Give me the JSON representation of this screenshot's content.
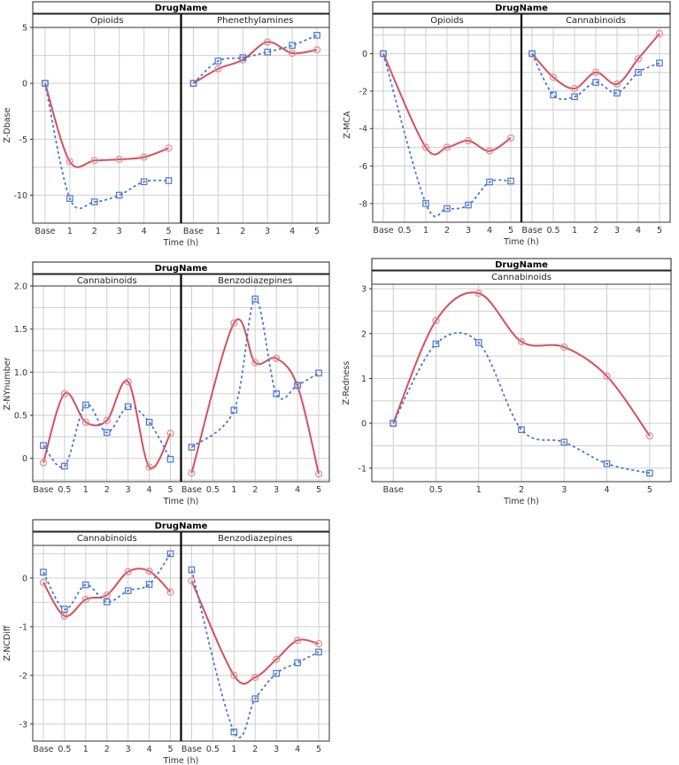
{
  "colors": {
    "series_red": "#d6505f",
    "series_blue": "#4a78d0",
    "grid": "#cfcfcf"
  },
  "chart_data": [
    {
      "type": "line",
      "header": "DrugName",
      "ylabel": "Z-Dbase",
      "xlabel": "Time (h)",
      "categories": [
        "Base",
        "1",
        "2",
        "3",
        "4",
        "5"
      ],
      "ylim": [
        -12.5,
        5.0
      ],
      "yticks": [
        5,
        0,
        -5,
        -10
      ],
      "ytick_labels": [
        "5",
        "0",
        "-5",
        "-10"
      ],
      "yminor": 2.5,
      "panels": [
        {
          "name": "Opioids",
          "series": [
            {
              "name": "red-solid",
              "values": [
                0,
                -7.0,
                -6.9,
                -6.8,
                -6.6,
                -5.8
              ]
            },
            {
              "name": "blue-dashed",
              "values": [
                0,
                -10.3,
                -10.6,
                -10.0,
                -8.8,
                -8.7
              ]
            }
          ]
        },
        {
          "name": "Phenethylamines",
          "series": [
            {
              "name": "red-solid",
              "values": [
                0,
                1.3,
                2.1,
                3.7,
                2.7,
                3.0
              ]
            },
            {
              "name": "blue-dashed",
              "values": [
                0,
                2.0,
                2.3,
                2.8,
                3.4,
                4.3
              ]
            }
          ]
        }
      ]
    },
    {
      "type": "line",
      "header": "DrugName",
      "ylabel": "Z-MCA",
      "xlabel": "Time (h)",
      "categories": [
        "Base",
        "0.5",
        "1",
        "2",
        "3",
        "4",
        "5"
      ],
      "ylim": [
        -9.0,
        1.4
      ],
      "yticks": [
        0,
        -2,
        -4,
        -6,
        -8
      ],
      "ytick_labels": [
        "0",
        "-2",
        "-4",
        "-6",
        "-8"
      ],
      "yminor": 1,
      "panels": [
        {
          "name": "Opioids",
          "series": [
            {
              "name": "red-solid",
              "values": [
                0,
                null,
                -5.0,
                -5.0,
                -4.65,
                -5.2,
                -4.5
              ]
            },
            {
              "name": "blue-dashed",
              "values": [
                0,
                null,
                -8.0,
                -8.27,
                -8.08,
                -6.85,
                -6.8
              ]
            }
          ]
        },
        {
          "name": "Cannabinoids",
          "series": [
            {
              "name": "red-solid",
              "values": [
                0,
                -1.26,
                -1.86,
                -1.0,
                -1.62,
                -0.27,
                1.07
              ]
            },
            {
              "name": "blue-dashed",
              "values": [
                0,
                -2.2,
                -2.3,
                -1.53,
                -2.1,
                -1.0,
                -0.5
              ]
            }
          ]
        }
      ]
    },
    {
      "type": "line",
      "header": "DrugName",
      "ylabel": "Z-NYnumber",
      "xlabel": "Time (h)",
      "categories": [
        "Base",
        "0.5",
        "1",
        "2",
        "3",
        "4",
        "5"
      ],
      "ylim": [
        -0.27,
        2.0
      ],
      "yticks": [
        2.0,
        1.5,
        1.0,
        0.5,
        0
      ],
      "ytick_labels": [
        "2.0",
        "1.5",
        "1.0",
        "0.5",
        "0"
      ],
      "yminor": 0.25,
      "panels": [
        {
          "name": "Cannabinoids",
          "series": [
            {
              "name": "red-solid",
              "values": [
                -0.05,
                0.75,
                0.42,
                0.44,
                0.89,
                -0.1,
                0.29
              ]
            },
            {
              "name": "blue-dashed",
              "values": [
                0.15,
                -0.09,
                0.62,
                0.3,
                0.6,
                0.42,
                -0.01
              ]
            }
          ]
        },
        {
          "name": "Benzodiazepines",
          "series": [
            {
              "name": "red-solid",
              "values": [
                -0.17,
                null,
                1.57,
                1.11,
                1.16,
                0.84,
                -0.18
              ]
            },
            {
              "name": "blue-dashed",
              "values": [
                0.13,
                null,
                0.56,
                1.85,
                0.75,
                0.85,
                0.99
              ]
            }
          ]
        }
      ]
    },
    {
      "type": "line",
      "header": "DrugName",
      "ylabel": "Z-Redness",
      "xlabel": "Time (h)",
      "categories": [
        "Base",
        "0.5",
        "1",
        "2",
        "3",
        "4",
        "5"
      ],
      "ylim": [
        -1.3,
        3.1
      ],
      "yticks": [
        3,
        2,
        1,
        0,
        -1
      ],
      "ytick_labels": [
        "3",
        "2",
        "1",
        "0",
        "-1"
      ],
      "yminor": 0.5,
      "panels": [
        {
          "name": "Cannabinoids",
          "series": [
            {
              "name": "red-solid",
              "values": [
                0,
                2.29,
                2.9,
                1.82,
                1.7,
                1.05,
                -0.28
              ]
            },
            {
              "name": "blue-dashed",
              "values": [
                0,
                1.77,
                1.8,
                -0.14,
                -0.42,
                -0.9,
                -1.11
              ]
            }
          ]
        }
      ]
    },
    {
      "type": "line",
      "header": "DrugName",
      "ylabel": "Z-NCDiff",
      "xlabel": "Time (h)",
      "categories": [
        "Base",
        "0.5",
        "1",
        "2",
        "3",
        "4",
        "5"
      ],
      "ylim": [
        -3.35,
        0.67
      ],
      "yticks": [
        0,
        -1,
        -2,
        -3
      ],
      "ytick_labels": [
        "0",
        "-1",
        "-2",
        "-3"
      ],
      "yminor": 0.5,
      "panels": [
        {
          "name": "Cannabinoids",
          "series": [
            {
              "name": "red-solid",
              "values": [
                -0.09,
                -0.78,
                -0.44,
                -0.35,
                0.13,
                0.14,
                -0.29
              ]
            },
            {
              "name": "blue-dashed",
              "values": [
                0.12,
                -0.64,
                -0.14,
                -0.49,
                -0.26,
                -0.13,
                0.5
              ]
            }
          ]
        },
        {
          "name": "Benzodiazepines",
          "series": [
            {
              "name": "red-solid",
              "values": [
                -0.06,
                null,
                -2.0,
                -2.04,
                -1.67,
                -1.28,
                -1.35
              ]
            },
            {
              "name": "blue-dashed",
              "values": [
                0.17,
                null,
                -3.16,
                -2.48,
                -1.96,
                -1.74,
                -1.52
              ]
            }
          ]
        }
      ]
    }
  ]
}
